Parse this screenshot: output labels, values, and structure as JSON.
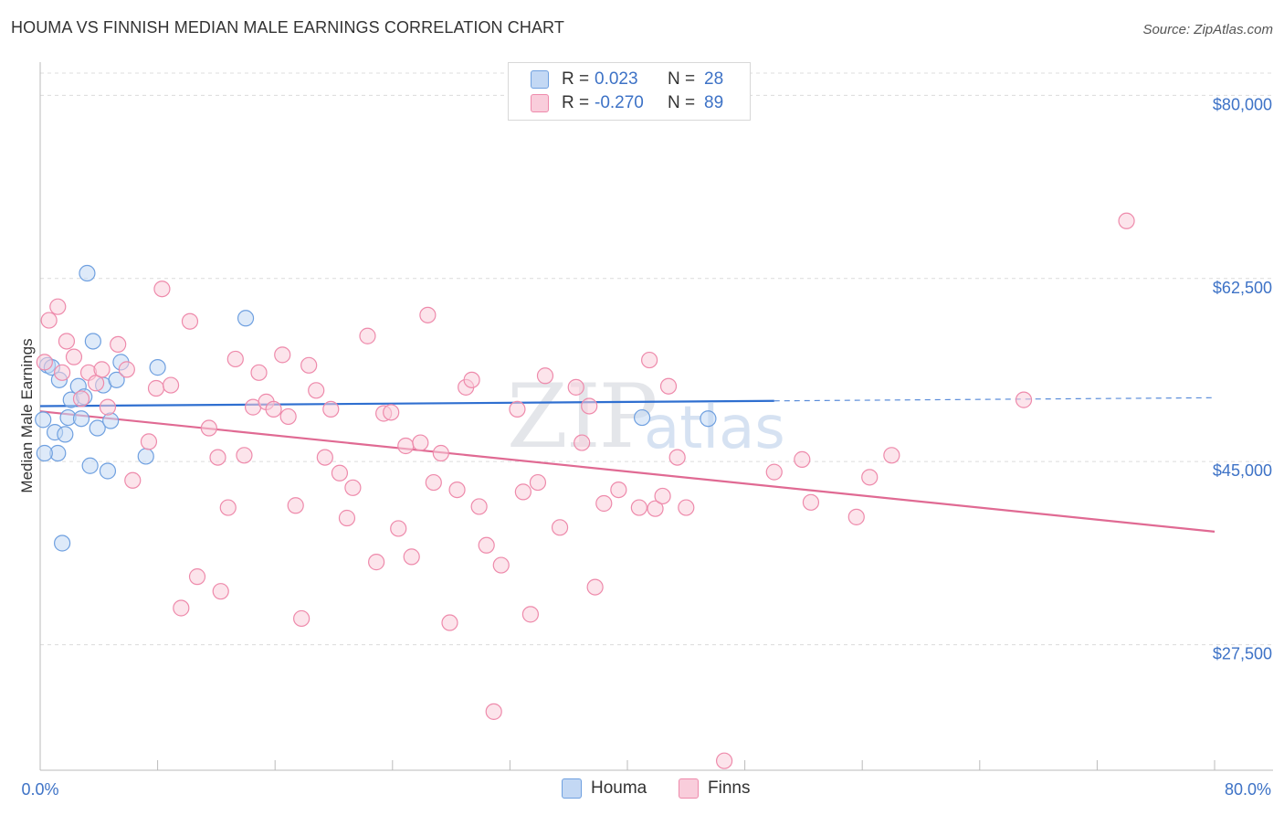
{
  "title": "HOUMA VS FINNISH MEDIAN MALE EARNINGS CORRELATION CHART",
  "source": "Source: ZipAtlas.com",
  "watermark": {
    "zip": "ZIP",
    "atlas": "atlas"
  },
  "colors": {
    "houma": "#6fa0e0",
    "finns": "#ee8aab",
    "houma_line": "#2f6fd0",
    "finns_line": "#e06a93",
    "tick_text": "#3d72c6"
  },
  "legend": {
    "houma": {
      "r_label": "R =",
      "r_value": "0.023",
      "n_label": "N =",
      "n_value": "28"
    },
    "finns": {
      "r_label": "R =",
      "r_value": "-0.270",
      "n_label": "N =",
      "n_value": "89"
    }
  },
  "bottom_legend": {
    "houma": "Houma",
    "finns": "Finns"
  },
  "chart_data": {
    "type": "scatter",
    "title": "HOUMA VS FINNISH MEDIAN MALE EARNINGS CORRELATION CHART",
    "xlabel": "",
    "ylabel": "Median Male Earnings",
    "xlim": [
      0,
      80
    ],
    "ylim": [
      15500,
      83000
    ],
    "x_tick_labels": [
      "0.0%",
      "80.0%"
    ],
    "y_ticks": [
      27500,
      45000,
      62500,
      80000
    ],
    "y_tick_labels": [
      "$27,500",
      "$45,000",
      "$62,500",
      "$80,000"
    ],
    "series": [
      {
        "name": "Houma",
        "trend": {
          "x0": 0,
          "y0": 50300,
          "x1": 50,
          "y1": 50800,
          "dashed_to_x": 80,
          "dashed_to_y": 51100
        },
        "points": [
          [
            0.2,
            49000
          ],
          [
            0.5,
            54200
          ],
          [
            0.8,
            54000
          ],
          [
            1.0,
            47800
          ],
          [
            1.2,
            45800
          ],
          [
            1.3,
            52800
          ],
          [
            1.5,
            37200
          ],
          [
            1.7,
            47600
          ],
          [
            1.9,
            49200
          ],
          [
            2.1,
            50900
          ],
          [
            2.6,
            52200
          ],
          [
            2.8,
            49100
          ],
          [
            3.0,
            51200
          ],
          [
            3.2,
            63000
          ],
          [
            3.4,
            44600
          ],
          [
            3.6,
            56500
          ],
          [
            3.9,
            48200
          ],
          [
            4.3,
            52300
          ],
          [
            4.6,
            44100
          ],
          [
            4.8,
            48900
          ],
          [
            5.2,
            52800
          ],
          [
            5.5,
            54500
          ],
          [
            7.2,
            45500
          ],
          [
            8.0,
            54000
          ],
          [
            14.0,
            58700
          ],
          [
            41.0,
            49200
          ],
          [
            45.5,
            49100
          ],
          [
            0.3,
            45800
          ]
        ]
      },
      {
        "name": "Finns",
        "trend": {
          "x0": 0,
          "y0": 49800,
          "x1": 80,
          "y1": 38300
        },
        "points": [
          [
            0.3,
            54500
          ],
          [
            0.6,
            58500
          ],
          [
            1.2,
            59800
          ],
          [
            1.5,
            53500
          ],
          [
            1.8,
            56500
          ],
          [
            2.3,
            55000
          ],
          [
            2.8,
            51000
          ],
          [
            3.3,
            53500
          ],
          [
            3.8,
            52500
          ],
          [
            4.2,
            53800
          ],
          [
            4.6,
            50200
          ],
          [
            5.3,
            56200
          ],
          [
            5.9,
            53800
          ],
          [
            6.3,
            43200
          ],
          [
            7.4,
            46900
          ],
          [
            7.9,
            52000
          ],
          [
            8.3,
            61500
          ],
          [
            8.9,
            52300
          ],
          [
            9.6,
            31000
          ],
          [
            10.2,
            58400
          ],
          [
            10.7,
            34000
          ],
          [
            11.5,
            48200
          ],
          [
            12.1,
            45400
          ],
          [
            12.3,
            32600
          ],
          [
            12.8,
            40600
          ],
          [
            13.3,
            54800
          ],
          [
            13.9,
            45600
          ],
          [
            14.5,
            50200
          ],
          [
            14.9,
            53500
          ],
          [
            15.4,
            50700
          ],
          [
            15.9,
            50000
          ],
          [
            16.5,
            55200
          ],
          [
            16.9,
            49300
          ],
          [
            17.4,
            40800
          ],
          [
            17.8,
            30000
          ],
          [
            18.3,
            54200
          ],
          [
            18.8,
            51800
          ],
          [
            19.4,
            45400
          ],
          [
            19.8,
            50000
          ],
          [
            20.4,
            43900
          ],
          [
            20.9,
            39600
          ],
          [
            21.3,
            42500
          ],
          [
            22.3,
            57000
          ],
          [
            22.9,
            35400
          ],
          [
            23.4,
            49600
          ],
          [
            23.9,
            49700
          ],
          [
            24.4,
            38600
          ],
          [
            24.9,
            46500
          ],
          [
            25.3,
            35900
          ],
          [
            25.9,
            46800
          ],
          [
            26.4,
            59000
          ],
          [
            26.8,
            43000
          ],
          [
            27.3,
            45800
          ],
          [
            27.9,
            29600
          ],
          [
            28.4,
            42300
          ],
          [
            29.0,
            52100
          ],
          [
            29.4,
            52800
          ],
          [
            29.9,
            40700
          ],
          [
            30.4,
            37000
          ],
          [
            30.9,
            21100
          ],
          [
            31.4,
            35100
          ],
          [
            32.5,
            50000
          ],
          [
            32.9,
            42100
          ],
          [
            33.4,
            30400
          ],
          [
            33.9,
            43000
          ],
          [
            34.4,
            53200
          ],
          [
            35.4,
            38700
          ],
          [
            36.5,
            52100
          ],
          [
            36.9,
            46800
          ],
          [
            37.4,
            50300
          ],
          [
            37.8,
            33000
          ],
          [
            38.4,
            41000
          ],
          [
            39.4,
            42300
          ],
          [
            40.8,
            40600
          ],
          [
            41.5,
            54700
          ],
          [
            41.9,
            40500
          ],
          [
            42.4,
            41700
          ],
          [
            42.8,
            52200
          ],
          [
            43.4,
            45400
          ],
          [
            44.0,
            40600
          ],
          [
            46.6,
            16400
          ],
          [
            50.0,
            44000
          ],
          [
            51.9,
            45200
          ],
          [
            52.5,
            41100
          ],
          [
            55.6,
            39700
          ],
          [
            56.5,
            43500
          ],
          [
            58.0,
            45600
          ],
          [
            67.0,
            50900
          ],
          [
            74.0,
            68000
          ]
        ]
      }
    ]
  }
}
